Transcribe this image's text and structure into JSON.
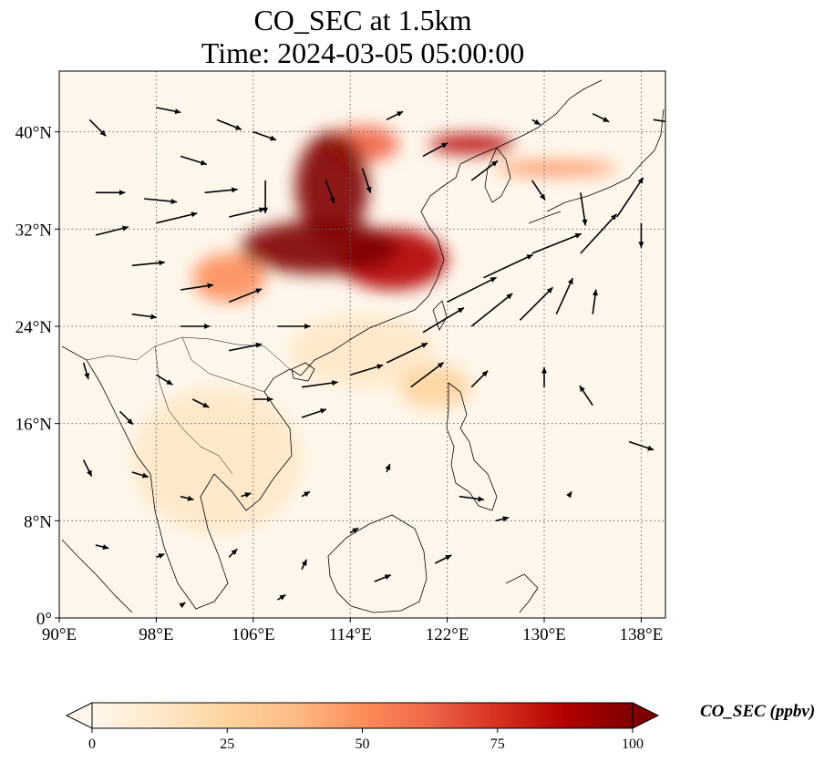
{
  "title": {
    "line1": "CO_SEC at 1.5km",
    "line2": "Time: 2024-03-05 05:00:00"
  },
  "map": {
    "projection": "PlateCarree",
    "lon_range": [
      90,
      140
    ],
    "lat_range": [
      0,
      45
    ],
    "gridlines": "dotted",
    "x_ticks": [
      {
        "lon": 90,
        "label": "90°E"
      },
      {
        "lon": 98,
        "label": "98°E"
      },
      {
        "lon": 106,
        "label": "106°E"
      },
      {
        "lon": 114,
        "label": "114°E"
      },
      {
        "lon": 122,
        "label": "122°E"
      },
      {
        "lon": 130,
        "label": "130°E"
      },
      {
        "lon": 138,
        "label": "138°E"
      }
    ],
    "y_ticks": [
      {
        "lat": 0,
        "label": "0°"
      },
      {
        "lat": 8,
        "label": "8°N"
      },
      {
        "lat": 16,
        "label": "16°N"
      },
      {
        "lat": 24,
        "label": "24°N"
      },
      {
        "lat": 32,
        "label": "32°N"
      },
      {
        "lat": 40,
        "label": "40°N"
      }
    ],
    "plumes": [
      {
        "lon": 111.5,
        "lat": 30.5,
        "rlon": 6.5,
        "rlat": 2.2,
        "value": 95
      },
      {
        "lon": 112.5,
        "lat": 35.5,
        "rlon": 3.0,
        "rlat": 4.5,
        "value": 95
      },
      {
        "lon": 117.5,
        "lat": 29.5,
        "rlon": 4.5,
        "rlat": 2.5,
        "value": 90
      },
      {
        "lon": 124.0,
        "lat": 39.0,
        "rlon": 3.5,
        "rlat": 0.8,
        "value": 85
      },
      {
        "lon": 115.0,
        "lat": 39.0,
        "rlon": 3.0,
        "rlat": 1.5,
        "value": 60
      },
      {
        "lon": 131.0,
        "lat": 37.0,
        "rlon": 5.0,
        "rlat": 0.6,
        "value": 45
      },
      {
        "lon": 121.0,
        "lat": 19.0,
        "rlon": 3.0,
        "rlat": 1.8,
        "value": 25
      },
      {
        "lon": 104.0,
        "lat": 28.0,
        "rlon": 3.0,
        "rlat": 2.0,
        "value": 55
      },
      {
        "lon": 115.0,
        "lat": 22.0,
        "rlon": 6.0,
        "rlat": 3.0,
        "value": 15
      },
      {
        "lon": 103.0,
        "lat": 13.0,
        "rlon": 7.0,
        "rlat": 6.0,
        "value": 8
      }
    ],
    "wind_vectors": [
      {
        "lon": 92.5,
        "lat": 41,
        "u": 1.0,
        "v": -1.0
      },
      {
        "lon": 98.0,
        "lat": 42,
        "u": 1.5,
        "v": -0.3
      },
      {
        "lon": 103.0,
        "lat": 41,
        "u": 1.5,
        "v": -0.6
      },
      {
        "lon": 106.0,
        "lat": 40,
        "u": 1.4,
        "v": -0.5
      },
      {
        "lon": 100.0,
        "lat": 38,
        "u": 1.6,
        "v": -0.5
      },
      {
        "lon": 93.0,
        "lat": 35,
        "u": 1.8,
        "v": 0.0
      },
      {
        "lon": 97.0,
        "lat": 34.5,
        "u": 2.0,
        "v": -0.2
      },
      {
        "lon": 102.0,
        "lat": 35,
        "u": 2.0,
        "v": 0.2
      },
      {
        "lon": 107.0,
        "lat": 36,
        "u": 0.0,
        "v": -2.0
      },
      {
        "lon": 93.0,
        "lat": 31.5,
        "u": 2.0,
        "v": 0.5
      },
      {
        "lon": 98.0,
        "lat": 32.5,
        "u": 2.5,
        "v": 0.6
      },
      {
        "lon": 104.0,
        "lat": 33,
        "u": 2.2,
        "v": 0.5
      },
      {
        "lon": 96.0,
        "lat": 29,
        "u": 2.0,
        "v": 0.2
      },
      {
        "lon": 100.0,
        "lat": 27,
        "u": 2.0,
        "v": 0.3
      },
      {
        "lon": 104.0,
        "lat": 26,
        "u": 2.0,
        "v": 0.8
      },
      {
        "lon": 96.0,
        "lat": 25,
        "u": 1.5,
        "v": -0.2
      },
      {
        "lon": 100.0,
        "lat": 24,
        "u": 1.8,
        "v": 0.0
      },
      {
        "lon": 104.0,
        "lat": 22,
        "u": 2.0,
        "v": 0.4
      },
      {
        "lon": 108.0,
        "lat": 24,
        "u": 2.0,
        "v": 0.0
      },
      {
        "lon": 110.0,
        "lat": 19,
        "u": 2.2,
        "v": 0.3
      },
      {
        "lon": 114.0,
        "lat": 20,
        "u": 2.0,
        "v": 0.6
      },
      {
        "lon": 117.0,
        "lat": 21,
        "u": 2.5,
        "v": 1.2
      },
      {
        "lon": 120.0,
        "lat": 23.5,
        "u": 2.5,
        "v": 1.5
      },
      {
        "lon": 122.0,
        "lat": 26,
        "u": 3.0,
        "v": 1.5
      },
      {
        "lon": 125.0,
        "lat": 28,
        "u": 3.0,
        "v": 1.4
      },
      {
        "lon": 129.0,
        "lat": 30,
        "u": 3.0,
        "v": 1.2
      },
      {
        "lon": 133.0,
        "lat": 30,
        "u": 2.2,
        "v": 2.4
      },
      {
        "lon": 136.0,
        "lat": 33,
        "u": 1.6,
        "v": 2.4
      },
      {
        "lon": 124.0,
        "lat": 24,
        "u": 2.5,
        "v": 2.0
      },
      {
        "lon": 128.0,
        "lat": 24.5,
        "u": 2.0,
        "v": 2.0
      },
      {
        "lon": 131.0,
        "lat": 25,
        "u": 1.0,
        "v": 2.2
      },
      {
        "lon": 134.0,
        "lat": 25,
        "u": 0.2,
        "v": 1.5
      },
      {
        "lon": 119.0,
        "lat": 19,
        "u": 2.0,
        "v": 1.5
      },
      {
        "lon": 124.0,
        "lat": 19,
        "u": 1.0,
        "v": 1.0
      },
      {
        "lon": 130.0,
        "lat": 19,
        "u": 0.0,
        "v": 1.2
      },
      {
        "lon": 134.0,
        "lat": 17.5,
        "u": -0.8,
        "v": 1.2
      },
      {
        "lon": 137.0,
        "lat": 14.5,
        "u": 1.5,
        "v": -0.5
      },
      {
        "lon": 120.0,
        "lat": 38,
        "u": 1.5,
        "v": 0.8
      },
      {
        "lon": 124.0,
        "lat": 36,
        "u": 1.6,
        "v": 1.2
      },
      {
        "lon": 129.0,
        "lat": 36,
        "u": 0.8,
        "v": -1.2
      },
      {
        "lon": 133.0,
        "lat": 35,
        "u": 0.3,
        "v": -2.0
      },
      {
        "lon": 138.0,
        "lat": 32.5,
        "u": 0.0,
        "v": -1.5
      },
      {
        "lon": 139.0,
        "lat": 41,
        "u": 2.0,
        "v": -0.3
      },
      {
        "lon": 134.0,
        "lat": 41.5,
        "u": 1.0,
        "v": -0.5
      },
      {
        "lon": 129.0,
        "lat": 41,
        "u": 0.5,
        "v": -0.3
      },
      {
        "lon": 112.0,
        "lat": 36,
        "u": 0.5,
        "v": -1.4
      },
      {
        "lon": 117.0,
        "lat": 41,
        "u": 1.0,
        "v": 0.5
      },
      {
        "lon": 115.0,
        "lat": 37,
        "u": 0.5,
        "v": -1.5
      },
      {
        "lon": 92.0,
        "lat": 21,
        "u": 0.3,
        "v": -1.0
      },
      {
        "lon": 95.0,
        "lat": 17,
        "u": 0.8,
        "v": -0.8
      },
      {
        "lon": 98.0,
        "lat": 20,
        "u": 1.0,
        "v": -0.6
      },
      {
        "lon": 101.0,
        "lat": 18,
        "u": 1.0,
        "v": -0.5
      },
      {
        "lon": 106.0,
        "lat": 18,
        "u": 1.2,
        "v": 0.0
      },
      {
        "lon": 110.0,
        "lat": 16.5,
        "u": 1.5,
        "v": 0.5
      },
      {
        "lon": 92.0,
        "lat": 13,
        "u": 0.5,
        "v": -1.0
      },
      {
        "lon": 96.0,
        "lat": 12,
        "u": 1.0,
        "v": -0.3
      },
      {
        "lon": 100.0,
        "lat": 10,
        "u": 0.8,
        "v": -0.2
      },
      {
        "lon": 105.0,
        "lat": 10,
        "u": 0.6,
        "v": 0.2
      },
      {
        "lon": 110.0,
        "lat": 10,
        "u": 0.5,
        "v": 0.3
      },
      {
        "lon": 93.0,
        "lat": 6,
        "u": 0.8,
        "v": -0.2
      },
      {
        "lon": 98.0,
        "lat": 5,
        "u": 0.5,
        "v": 0.2
      },
      {
        "lon": 104.0,
        "lat": 5,
        "u": 0.5,
        "v": 0.5
      },
      {
        "lon": 110.0,
        "lat": 4,
        "u": 0.3,
        "v": 0.6
      },
      {
        "lon": 116.0,
        "lat": 3,
        "u": 1.0,
        "v": 0.4
      },
      {
        "lon": 121.0,
        "lat": 4.5,
        "u": 1.0,
        "v": 0.5
      },
      {
        "lon": 126.0,
        "lat": 8,
        "u": 0.8,
        "v": 0.2
      },
      {
        "lon": 123.0,
        "lat": 10,
        "u": 1.5,
        "v": -0.2
      },
      {
        "lon": 117.0,
        "lat": 12,
        "u": 0.2,
        "v": 0.5
      },
      {
        "lon": 114.0,
        "lat": 7,
        "u": 0.5,
        "v": 0.3
      },
      {
        "lon": 132.0,
        "lat": 10,
        "u": 0.2,
        "v": 0.3
      },
      {
        "lon": 108.0,
        "lat": 1.5,
        "u": 0.5,
        "v": 0.3
      },
      {
        "lon": 100.0,
        "lat": 1,
        "u": 0.3,
        "v": 0.2
      }
    ]
  },
  "colorbar": {
    "label": "CO_SEC (ppbv)",
    "min": 0,
    "max": 100,
    "extend": "both",
    "ticks": [
      {
        "value": 0,
        "label": "0"
      },
      {
        "value": 25,
        "label": "25"
      },
      {
        "value": 50,
        "label": "50"
      },
      {
        "value": 75,
        "label": "75"
      },
      {
        "value": 100,
        "label": "100"
      }
    ],
    "colormap": "OrRd",
    "colors": [
      "#fff7ec",
      "#fee8c8",
      "#fdd49e",
      "#fdbb84",
      "#fc8d59",
      "#ef6548",
      "#d7301f",
      "#b30000",
      "#7f0000"
    ]
  }
}
